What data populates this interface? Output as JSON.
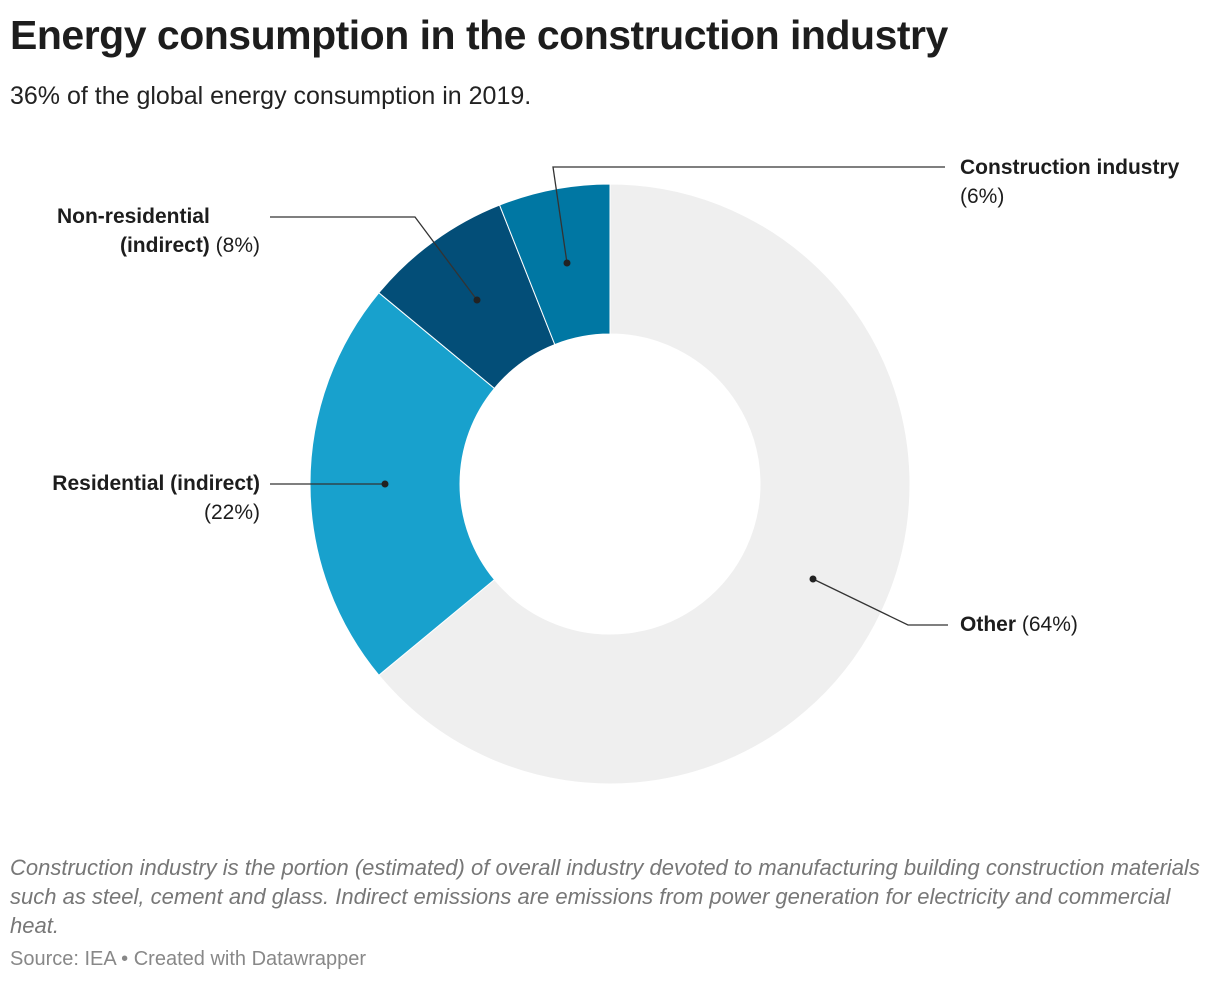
{
  "header": {
    "title": "Energy consumption in the construction industry",
    "subtitle": "36% of the global energy consumption in 2019."
  },
  "chart_data": {
    "type": "pie",
    "variant": "donut",
    "title": "Energy consumption in the construction industry",
    "subtitle": "36% of the global energy consumption in 2019.",
    "unit": "%",
    "slices": [
      {
        "name": "Other",
        "value": 64,
        "value_label": "(64%)",
        "color": "#efefef"
      },
      {
        "name": "Residential (indirect)",
        "value": 22,
        "value_label": "(22%)",
        "color": "#18a1cd"
      },
      {
        "name": "Non-residential (indirect)",
        "value": 8,
        "value_label": "(8%)",
        "color": "#034e78"
      },
      {
        "name": "Construction industry",
        "value": 6,
        "value_label": "(6%)",
        "color": "#0077a3"
      }
    ]
  },
  "footer": {
    "notes": "Construction industry is the portion (estimated) of overall industry devoted to manufacturing building construction materials such as steel, cement and glass. Indirect emissions are emissions from power generation for electricity and commercial heat.",
    "source": "Source: IEA • Created with Datawrapper"
  }
}
